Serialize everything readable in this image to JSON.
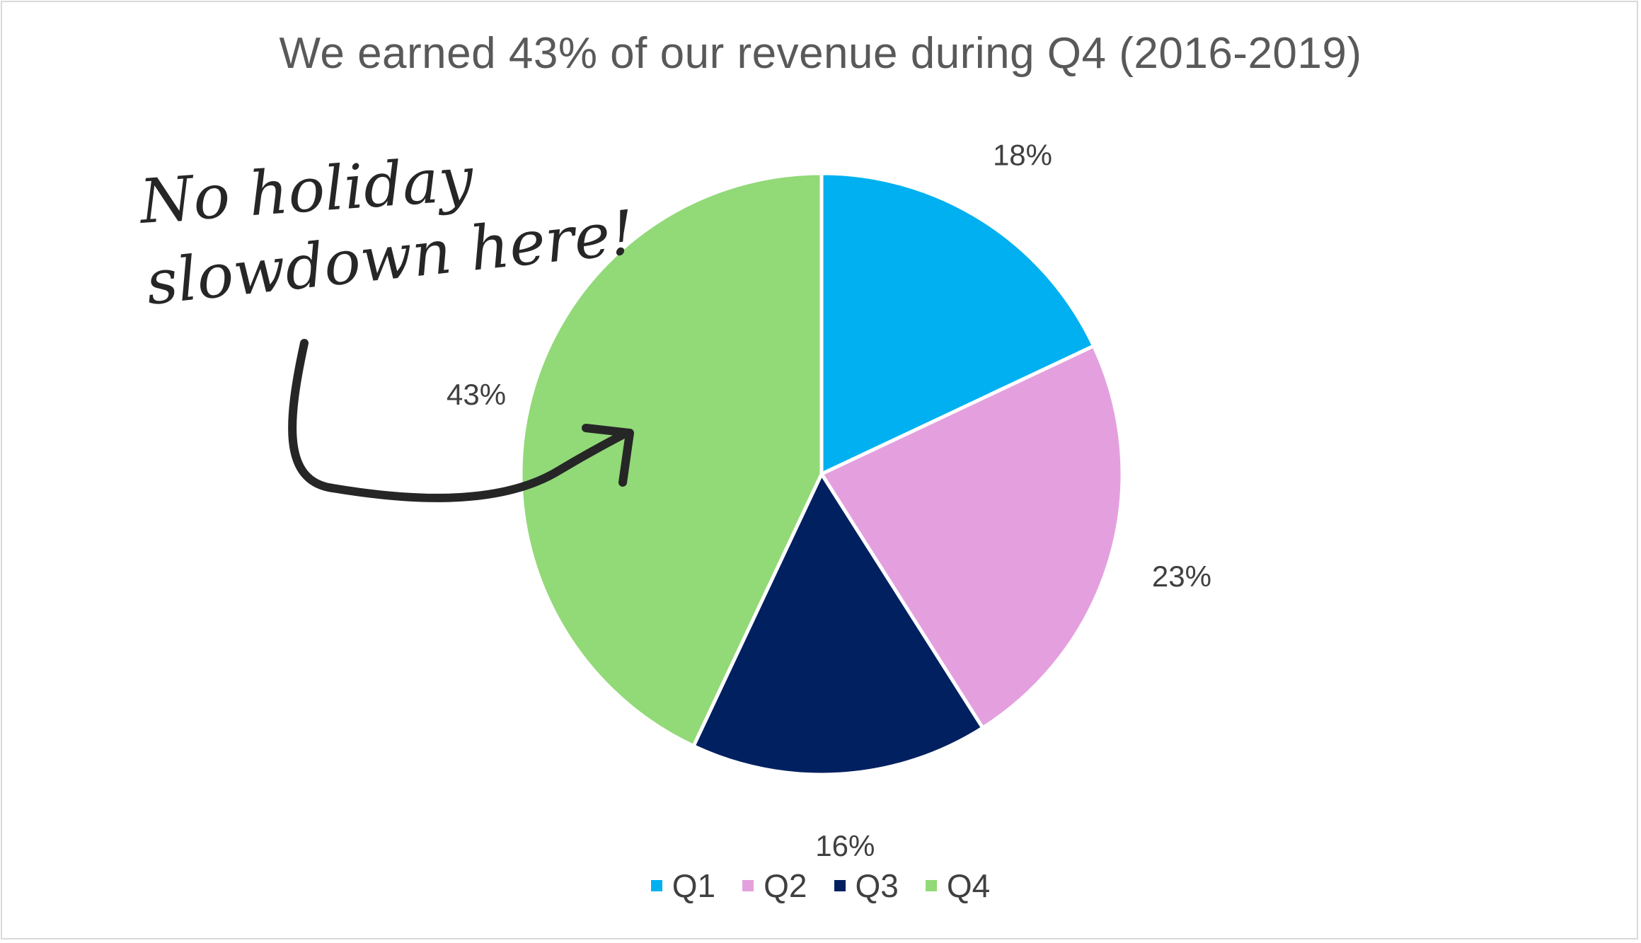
{
  "chart_data": {
    "type": "pie",
    "title": "We earned 43% of our revenue during Q4 (2016-2019)",
    "categories": [
      "Q1",
      "Q2",
      "Q3",
      "Q4"
    ],
    "values": [
      18,
      23,
      16,
      43
    ],
    "value_labels": [
      "18%",
      "23%",
      "16%",
      "43%"
    ],
    "colors": [
      "#00b0f0",
      "#e4a0de",
      "#002060",
      "#92d978"
    ],
    "legend_position": "bottom",
    "annotation": {
      "text_line1": "No holiday",
      "text_line2": "slowdown here!"
    }
  }
}
